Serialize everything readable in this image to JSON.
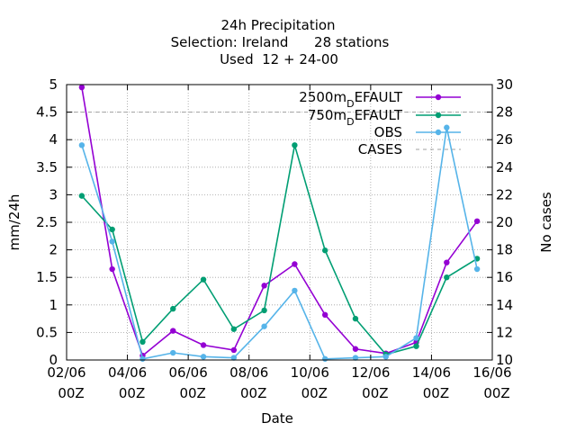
{
  "chart_data": {
    "type": "line",
    "title_lines": [
      "24h Precipitation",
      "Selection: Ireland      28 stations",
      "Used  12 + 24-00"
    ],
    "xlabel": "Date",
    "ylabel": "mm/24h",
    "y2label": "No cases",
    "ylim": [
      0,
      5
    ],
    "y2lim": [
      10,
      30
    ],
    "xlim": [
      0,
      14
    ],
    "x_tick_positions": [
      0,
      2,
      4,
      6,
      8,
      10,
      12,
      14
    ],
    "x_tick_labels": [
      [
        "02/06",
        "00Z"
      ],
      [
        "04/06",
        "00Z"
      ],
      [
        "06/06",
        "00Z"
      ],
      [
        "08/06",
        "00Z"
      ],
      [
        "10/06",
        "00Z"
      ],
      [
        "12/06",
        "00Z"
      ],
      [
        "14/06",
        "00Z"
      ],
      [
        "16/06",
        "00Z"
      ]
    ],
    "y_ticks": [
      "0",
      "0.5",
      "1",
      "1.5",
      "2",
      "2.5",
      "3",
      "3.5",
      "4",
      "4.5",
      "5"
    ],
    "y2_ticks": [
      "10",
      "12",
      "14",
      "16",
      "18",
      "20",
      "22",
      "24",
      "26",
      "28",
      "30"
    ],
    "grid": true,
    "legend_position": "top-right",
    "x": [
      0.5,
      1.5,
      2.5,
      3.5,
      4.5,
      5.5,
      6.5,
      7.5,
      8.5,
      9.5,
      10.5,
      11.5,
      12.5,
      13.5
    ],
    "series": [
      {
        "name": "2500m_DEFAULT",
        "legend_main": "2500m",
        "legend_sub": "D",
        "legend_rest": "EFAULT",
        "axis": "y",
        "color": "#9400d3",
        "marker": "dot",
        "values": [
          4.95,
          1.65,
          0.08,
          0.53,
          0.27,
          0.18,
          1.35,
          1.74,
          0.82,
          0.2,
          0.12,
          0.32,
          1.77,
          2.52
        ]
      },
      {
        "name": "750m_DEFAULT",
        "legend_main": "750m",
        "legend_sub": "D",
        "legend_rest": "EFAULT",
        "axis": "y",
        "color": "#009e73",
        "marker": "dot",
        "values": [
          2.98,
          2.37,
          0.33,
          0.93,
          1.46,
          0.56,
          0.9,
          3.9,
          1.99,
          0.75,
          0.1,
          0.25,
          1.5,
          1.84
        ]
      },
      {
        "name": "OBS",
        "legend_main": "OBS",
        "axis": "y",
        "color": "#56b4e9",
        "marker": "dot",
        "values": [
          3.9,
          2.15,
          0.02,
          0.13,
          0.06,
          0.04,
          0.61,
          1.26,
          0.02,
          0.04,
          0.06,
          0.4,
          4.22,
          1.65
        ]
      },
      {
        "name": "CASES",
        "legend_main": "CASES",
        "axis": "y2",
        "color": "#a0a0a0",
        "dash": "4,4",
        "marker": "none",
        "values": [
          28,
          28,
          28,
          28,
          28,
          28,
          28,
          28,
          28,
          28,
          28,
          28,
          28,
          28
        ]
      }
    ]
  }
}
